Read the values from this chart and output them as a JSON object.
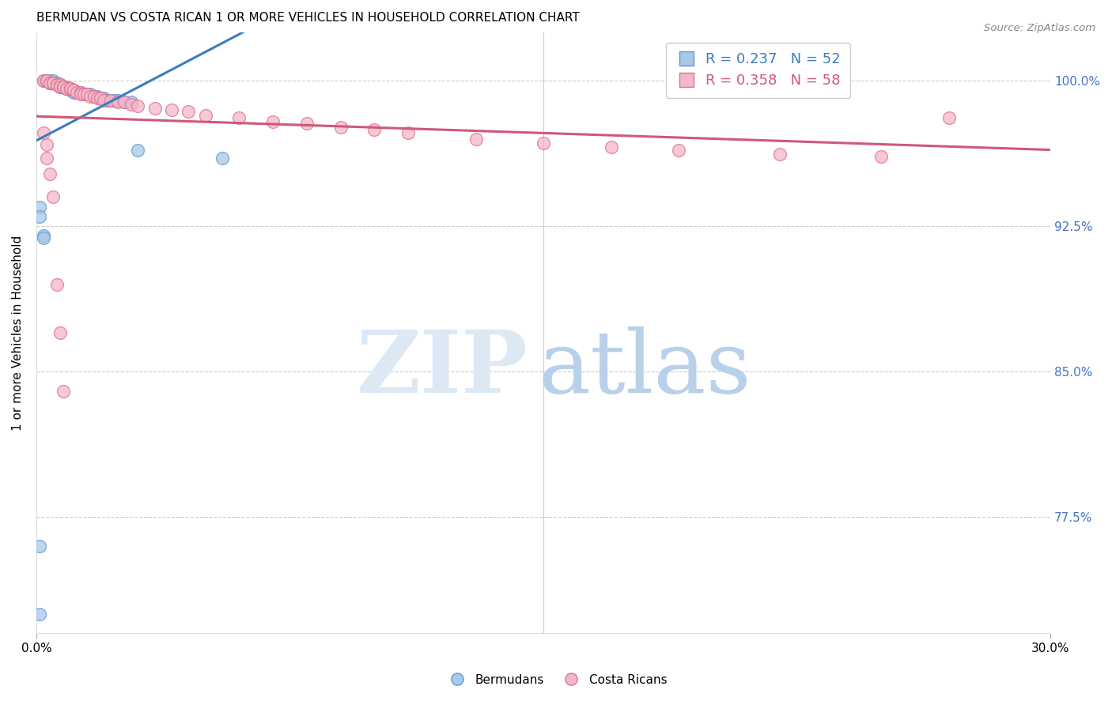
{
  "title": "BERMUDAN VS COSTA RICAN 1 OR MORE VEHICLES IN HOUSEHOLD CORRELATION CHART",
  "source": "Source: ZipAtlas.com",
  "ylabel": "1 or more Vehicles in Household",
  "ytick_labels": [
    "100.0%",
    "92.5%",
    "85.0%",
    "77.5%"
  ],
  "ytick_values": [
    1.0,
    0.925,
    0.85,
    0.775
  ],
  "xmin": 0.0,
  "xmax": 0.3,
  "ymin": 0.715,
  "ymax": 1.025,
  "blue_R": 0.237,
  "blue_N": 52,
  "pink_R": 0.358,
  "pink_N": 58,
  "blue_scatter_color": "#a8c8e8",
  "blue_edge_color": "#5b9bd5",
  "pink_scatter_color": "#f4b8c8",
  "pink_edge_color": "#e07090",
  "blue_line_color": "#3a7dbf",
  "pink_line_color": "#d05878",
  "watermark_ZIP_color": "#dce9f5",
  "watermark_atlas_color": "#b8d0ea",
  "grid_color": "#cccccc",
  "bermudans_x": [
    0.002,
    0.003,
    0.003,
    0.003,
    0.004,
    0.004,
    0.004,
    0.005,
    0.005,
    0.005,
    0.005,
    0.006,
    0.006,
    0.006,
    0.007,
    0.007,
    0.007,
    0.007,
    0.008,
    0.008,
    0.008,
    0.009,
    0.009,
    0.009,
    0.01,
    0.01,
    0.01,
    0.011,
    0.011,
    0.012,
    0.013,
    0.014,
    0.015,
    0.016,
    0.017,
    0.018,
    0.019,
    0.02,
    0.021,
    0.022,
    0.023,
    0.024,
    0.026,
    0.028,
    0.03,
    0.055,
    0.001,
    0.001,
    0.002,
    0.002,
    0.001,
    0.001
  ],
  "bermudans_y": [
    1.0,
    1.0,
    1.0,
    1.0,
    1.0,
    0.999,
    0.999,
    1.0,
    0.999,
    0.999,
    0.999,
    0.999,
    0.998,
    0.998,
    0.998,
    0.998,
    0.997,
    0.997,
    0.997,
    0.997,
    0.997,
    0.997,
    0.996,
    0.996,
    0.996,
    0.996,
    0.995,
    0.995,
    0.994,
    0.994,
    0.994,
    0.993,
    0.993,
    0.993,
    0.992,
    0.992,
    0.991,
    0.991,
    0.99,
    0.99,
    0.99,
    0.99,
    0.989,
    0.989,
    0.964,
    0.96,
    0.935,
    0.93,
    0.92,
    0.919,
    0.76,
    0.725
  ],
  "costa_ricans_x": [
    0.002,
    0.003,
    0.003,
    0.004,
    0.004,
    0.005,
    0.005,
    0.006,
    0.006,
    0.007,
    0.007,
    0.008,
    0.008,
    0.009,
    0.01,
    0.01,
    0.011,
    0.011,
    0.012,
    0.013,
    0.013,
    0.014,
    0.015,
    0.016,
    0.017,
    0.018,
    0.019,
    0.02,
    0.022,
    0.024,
    0.026,
    0.028,
    0.03,
    0.035,
    0.04,
    0.045,
    0.05,
    0.06,
    0.07,
    0.08,
    0.09,
    0.1,
    0.11,
    0.13,
    0.15,
    0.17,
    0.19,
    0.22,
    0.25,
    0.27,
    0.002,
    0.003,
    0.003,
    0.004,
    0.005,
    0.006,
    0.007,
    0.008
  ],
  "costa_ricans_y": [
    1.0,
    1.0,
    1.0,
    0.999,
    0.999,
    0.999,
    0.999,
    0.998,
    0.998,
    0.998,
    0.997,
    0.997,
    0.997,
    0.996,
    0.996,
    0.996,
    0.995,
    0.995,
    0.994,
    0.994,
    0.993,
    0.993,
    0.993,
    0.992,
    0.992,
    0.991,
    0.991,
    0.99,
    0.99,
    0.989,
    0.989,
    0.988,
    0.987,
    0.986,
    0.985,
    0.984,
    0.982,
    0.981,
    0.979,
    0.978,
    0.976,
    0.975,
    0.973,
    0.97,
    0.968,
    0.966,
    0.964,
    0.962,
    0.961,
    0.981,
    0.973,
    0.967,
    0.96,
    0.952,
    0.94,
    0.895,
    0.87,
    0.84
  ]
}
